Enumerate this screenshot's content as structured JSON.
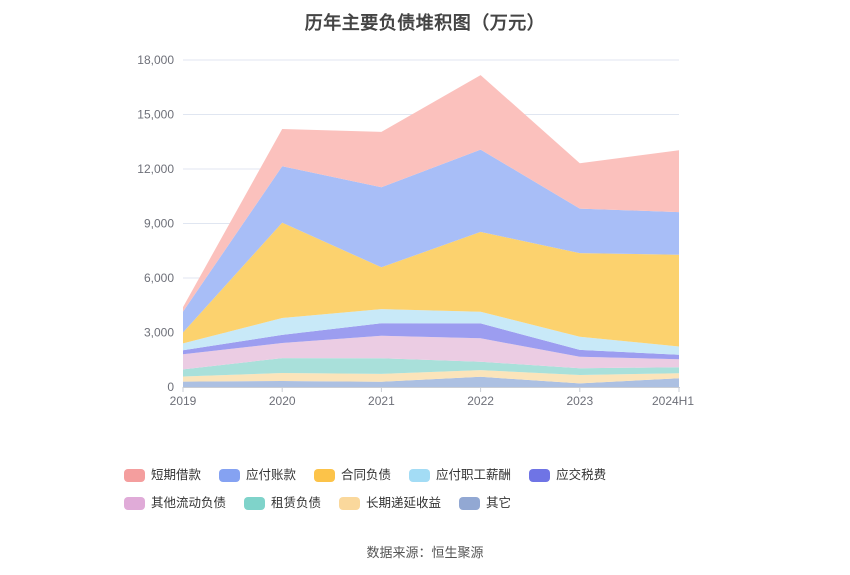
{
  "page": {
    "title": "历年主要负债堆积图（万元）",
    "source": "数据来源：恒生聚源"
  },
  "chart_data": {
    "type": "area",
    "stacked": true,
    "title": "历年主要负债堆积图（万元）",
    "xlabel": "",
    "ylabel": "",
    "categories": [
      "2019",
      "2020",
      "2021",
      "2022",
      "2023",
      "2024H1"
    ],
    "ylim": [
      0,
      18000
    ],
    "y_tick_step": 3000,
    "y_tick_labels": [
      "0",
      "3,000",
      "6,000",
      "9,000",
      "12,000",
      "15,000",
      "18,000"
    ],
    "grid": true,
    "legend_position": "bottom",
    "grid_color": "#E0E6F1",
    "axis_color": "#C9CDD4",
    "axis_label_color": "#6E7079",
    "stack_note": "series listed top-of-stack first (legend order); last series is bottom band",
    "series": [
      {
        "name": "短期借款",
        "color": "#F49E9E",
        "area_color": "#FBC1BD",
        "values": [
          250,
          2050,
          3050,
          4100,
          2500,
          3400
        ]
      },
      {
        "name": "应付账款",
        "color": "#85A2F2",
        "area_color": "#A8BEF7",
        "values": [
          1150,
          3100,
          4400,
          4530,
          2450,
          2350
        ]
      },
      {
        "name": "合同负债",
        "color": "#FCC349",
        "area_color": "#FCD26E",
        "values": [
          600,
          5250,
          2300,
          4400,
          4600,
          5050
        ]
      },
      {
        "name": "应付职工薪酬",
        "color": "#A3DCF5",
        "area_color": "#C8E9F8",
        "values": [
          380,
          930,
          780,
          640,
          730,
          460
        ]
      },
      {
        "name": "应交税费",
        "color": "#6F74E5",
        "area_color": "#9C9DF0",
        "values": [
          220,
          450,
          690,
          820,
          370,
          240
        ]
      },
      {
        "name": "其他流动负债",
        "color": "#E0ABD8",
        "area_color": "#EBCCE3",
        "values": [
          830,
          830,
          1240,
          1290,
          640,
          440
        ]
      },
      {
        "name": "租赁负债",
        "color": "#7FD3CA",
        "area_color": "#A9E0DA",
        "values": [
          390,
          820,
          860,
          460,
          370,
          330
        ]
      },
      {
        "name": "长期递延收益",
        "color": "#FAD89C",
        "area_color": "#FBE4BA",
        "values": [
          280,
          440,
          430,
          370,
          460,
          280
        ]
      },
      {
        "name": "其它",
        "color": "#92A8D3",
        "area_color": "#ACC0E2",
        "values": [
          300,
          330,
          290,
          560,
          200,
          480
        ]
      }
    ]
  }
}
